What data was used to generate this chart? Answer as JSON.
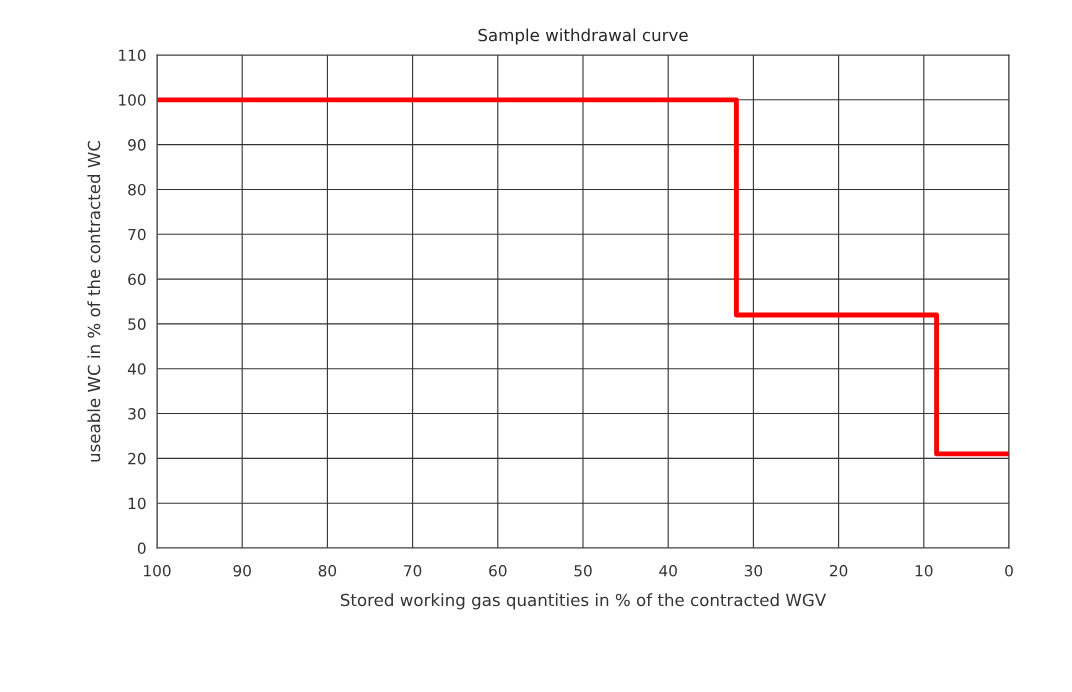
{
  "chart_data": {
    "type": "step",
    "title": "Sample withdrawal curve",
    "xlabel": "Stored working gas quantities in % of the contracted WGV",
    "ylabel": "useable WC in % of the contracted WC",
    "series": [
      {
        "color": "#ff0000",
        "x": [
          100,
          32,
          8.5,
          0
        ],
        "values": [
          100,
          52,
          21,
          21
        ]
      }
    ],
    "xlim": [
      100,
      0
    ],
    "xticks": [
      100,
      90,
      80,
      70,
      60,
      50,
      40,
      30,
      20,
      10,
      0
    ],
    "ylim": [
      0,
      110
    ],
    "yticks": [
      0,
      10,
      20,
      30,
      40,
      50,
      60,
      70,
      80,
      90,
      100,
      110
    ],
    "grid": true,
    "legend": false,
    "line_style": "solid",
    "marker": "none"
  }
}
